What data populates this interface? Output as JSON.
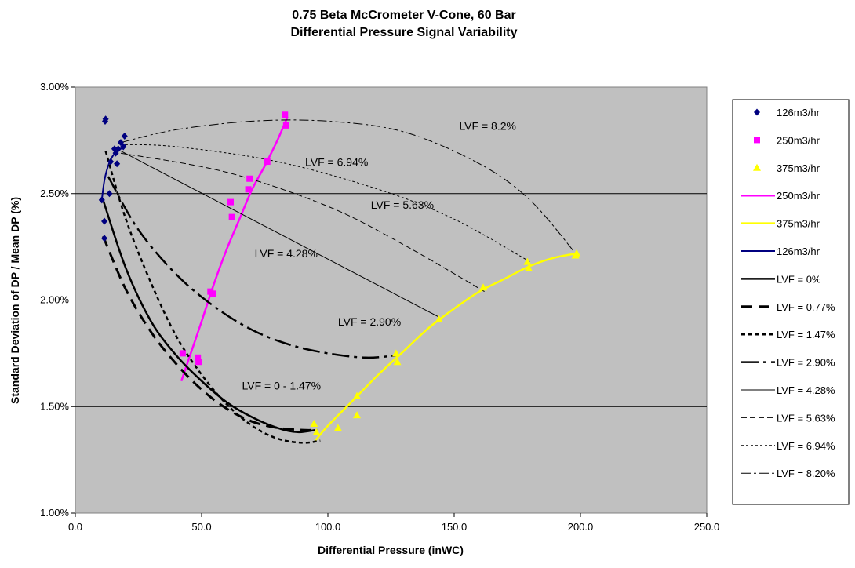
{
  "chart_data": {
    "type": "scatter",
    "title_line1": "0.75 Beta McCrometer V-Cone, 60 Bar",
    "title_line2": "Differential Pressure Signal Variability",
    "xlabel": "Differential Pressure (inWC)",
    "ylabel": "Standard Deviation of DP / Mean DP (%)",
    "xlim": [
      0,
      250
    ],
    "ylim": [
      1.0,
      3.0
    ],
    "x_ticks": [
      0,
      50,
      100,
      150,
      200,
      250
    ],
    "x_tick_labels": [
      "0.0",
      "50.0",
      "100.0",
      "150.0",
      "200.0",
      "250.0"
    ],
    "y_ticks": [
      1.0,
      1.5,
      2.0,
      2.5,
      3.0
    ],
    "y_tick_labels": [
      "1.00%",
      "1.50%",
      "2.00%",
      "2.50%",
      "3.00%"
    ],
    "grid": "horizontal",
    "plot_background": "#c0c0c0",
    "legend_position": "right",
    "markers": [
      {
        "name": "126m3/hr",
        "shape": "diamond",
        "color": "#000080",
        "points": [
          [
            10.5,
            2.47
          ],
          [
            11.5,
            2.29
          ],
          [
            11.5,
            2.37
          ],
          [
            11.8,
            2.84
          ],
          [
            12,
            2.85
          ],
          [
            13.5,
            2.5
          ],
          [
            14,
            2.65
          ],
          [
            15.5,
            2.71
          ],
          [
            16,
            2.69
          ],
          [
            16.5,
            2.64
          ],
          [
            17,
            2.71
          ],
          [
            18,
            2.74
          ],
          [
            19,
            2.72
          ],
          [
            19.5,
            2.77
          ]
        ]
      },
      {
        "name": "250m3/hr",
        "shape": "square",
        "color": "#ff00ff",
        "points": [
          [
            42.5,
            1.75
          ],
          [
            48.5,
            1.73
          ],
          [
            48.8,
            1.71
          ],
          [
            53.5,
            2.04
          ],
          [
            54.5,
            2.03
          ],
          [
            61.5,
            2.46
          ],
          [
            62,
            2.39
          ],
          [
            68.5,
            2.52
          ],
          [
            69,
            2.57
          ],
          [
            76,
            2.65
          ],
          [
            83,
            2.87
          ],
          [
            83.5,
            2.82
          ]
        ]
      },
      {
        "name": "375m3/hr",
        "shape": "triangle",
        "color": "#ffff00",
        "points": [
          [
            94.5,
            1.42
          ],
          [
            95.5,
            1.38
          ],
          [
            104,
            1.4
          ],
          [
            111.5,
            1.55
          ],
          [
            111.5,
            1.46
          ],
          [
            127,
            1.75
          ],
          [
            127.5,
            1.71
          ],
          [
            144,
            1.91
          ],
          [
            161.5,
            2.06
          ],
          [
            179,
            2.18
          ],
          [
            179.5,
            2.15
          ],
          [
            198,
            2.21
          ],
          [
            198.5,
            2.22
          ]
        ]
      }
    ],
    "curves": [
      {
        "name": "250m3/hr",
        "color": "#ff00ff",
        "width": 2.5,
        "dash": "",
        "points": [
          [
            42,
            1.62
          ],
          [
            46,
            1.76
          ],
          [
            50,
            1.9
          ],
          [
            55,
            2.08
          ],
          [
            60,
            2.24
          ],
          [
            65,
            2.38
          ],
          [
            70,
            2.52
          ],
          [
            75,
            2.63
          ],
          [
            80,
            2.75
          ],
          [
            84,
            2.86
          ]
        ]
      },
      {
        "name": "375m3/hr",
        "color": "#ffff00",
        "width": 2.5,
        "dash": "",
        "points": [
          [
            95,
            1.34
          ],
          [
            100,
            1.41
          ],
          [
            110,
            1.53
          ],
          [
            120,
            1.65
          ],
          [
            130,
            1.76
          ],
          [
            140,
            1.87
          ],
          [
            150,
            1.96
          ],
          [
            160,
            2.04
          ],
          [
            170,
            2.1
          ],
          [
            180,
            2.16
          ],
          [
            190,
            2.2
          ],
          [
            199,
            2.22
          ]
        ]
      },
      {
        "name": "126m3/hr",
        "color": "#000080",
        "width": 2,
        "dash": "",
        "points": [
          [
            10.5,
            2.47
          ],
          [
            11.5,
            2.56
          ],
          [
            13,
            2.63
          ],
          [
            15,
            2.68
          ],
          [
            17,
            2.7
          ],
          [
            19,
            2.72
          ],
          [
            20,
            2.73
          ]
        ]
      },
      {
        "name": "LVF = 0%",
        "color": "#000000",
        "width": 2.5,
        "dash": "",
        "points": [
          [
            11,
            2.47
          ],
          [
            20,
            2.15
          ],
          [
            30,
            1.9
          ],
          [
            40,
            1.74
          ],
          [
            50,
            1.62
          ],
          [
            60,
            1.52
          ],
          [
            70,
            1.45
          ],
          [
            80,
            1.4
          ],
          [
            88,
            1.38
          ],
          [
            95,
            1.39
          ]
        ]
      },
      {
        "name": "LVF = 0.77%",
        "color": "#000000",
        "width": 3,
        "dash": "14 8",
        "points": [
          [
            11,
            2.3
          ],
          [
            20,
            2.05
          ],
          [
            30,
            1.85
          ],
          [
            40,
            1.7
          ],
          [
            50,
            1.58
          ],
          [
            60,
            1.49
          ],
          [
            70,
            1.43
          ],
          [
            80,
            1.4
          ],
          [
            90,
            1.39
          ],
          [
            96,
            1.39
          ]
        ]
      },
      {
        "name": "LVF = 1.47%",
        "color": "#000000",
        "width": 2.5,
        "dash": "5 4",
        "points": [
          [
            12,
            2.7
          ],
          [
            20,
            2.38
          ],
          [
            30,
            2.08
          ],
          [
            40,
            1.83
          ],
          [
            50,
            1.65
          ],
          [
            60,
            1.51
          ],
          [
            70,
            1.41
          ],
          [
            80,
            1.35
          ],
          [
            90,
            1.33
          ],
          [
            97,
            1.34
          ]
        ]
      },
      {
        "name": "LVF = 2.90%",
        "color": "#000000",
        "width": 2.5,
        "dash": "22 6 4 6",
        "points": [
          [
            13,
            2.58
          ],
          [
            25,
            2.33
          ],
          [
            40,
            2.12
          ],
          [
            55,
            1.97
          ],
          [
            70,
            1.86
          ],
          [
            85,
            1.79
          ],
          [
            100,
            1.75
          ],
          [
            115,
            1.73
          ],
          [
            127,
            1.74
          ]
        ]
      },
      {
        "name": "LVF = 4.28%",
        "color": "#000000",
        "width": 1,
        "dash": "",
        "points": [
          [
            18,
            2.7
          ],
          [
            144,
            1.92
          ]
        ]
      },
      {
        "name": "LVF = 5.63%",
        "color": "#000000",
        "width": 1,
        "dash": "7 4",
        "points": [
          [
            18,
            2.69
          ],
          [
            60,
            2.6
          ],
          [
            100,
            2.44
          ],
          [
            130,
            2.26
          ],
          [
            162,
            2.04
          ]
        ]
      },
      {
        "name": "LVF = 6.94%",
        "color": "#000000",
        "width": 1,
        "dash": "3 3",
        "points": [
          [
            18,
            2.73
          ],
          [
            40,
            2.72
          ],
          [
            80,
            2.65
          ],
          [
            120,
            2.52
          ],
          [
            150,
            2.38
          ],
          [
            180,
            2.18
          ]
        ]
      },
      {
        "name": "LVF = 8.20%",
        "color": "#000000",
        "width": 1,
        "dash": "12 4 3 4",
        "points": [
          [
            18,
            2.74
          ],
          [
            40,
            2.8
          ],
          [
            70,
            2.84
          ],
          [
            100,
            2.84
          ],
          [
            130,
            2.79
          ],
          [
            160,
            2.64
          ],
          [
            180,
            2.47
          ],
          [
            198,
            2.22
          ]
        ]
      }
    ],
    "annotations": [
      {
        "text": "LVF = 8.2%",
        "x": 152,
        "y": 2.8
      },
      {
        "text": "LVF = 6.94%",
        "x": 91,
        "y": 2.63
      },
      {
        "text": "LVF = 5.63%",
        "x": 117,
        "y": 2.43
      },
      {
        "text": "LVF = 4.28%",
        "x": 71,
        "y": 2.2
      },
      {
        "text": "LVF = 2.90%",
        "x": 104,
        "y": 1.88
      },
      {
        "text": "LVF = 0 - 1.47%",
        "x": 66,
        "y": 1.58
      }
    ],
    "legend": [
      {
        "label": "126m3/hr",
        "kind": "marker",
        "shape": "diamond",
        "color": "#000080"
      },
      {
        "label": "250m3/hr",
        "kind": "marker",
        "shape": "square",
        "color": "#ff00ff"
      },
      {
        "label": "375m3/hr",
        "kind": "marker",
        "shape": "triangle",
        "color": "#ffff00"
      },
      {
        "label": "250m3/hr",
        "kind": "line",
        "color": "#ff00ff",
        "width": 2.5,
        "dash": ""
      },
      {
        "label": "375m3/hr",
        "kind": "line",
        "color": "#ffff00",
        "width": 2.5,
        "dash": ""
      },
      {
        "label": "126m3/hr",
        "kind": "line",
        "color": "#000080",
        "width": 2,
        "dash": ""
      },
      {
        "label": "LVF = 0%",
        "kind": "line",
        "color": "#000000",
        "width": 2.5,
        "dash": ""
      },
      {
        "label": "LVF = 0.77%",
        "kind": "line",
        "color": "#000000",
        "width": 3,
        "dash": "14 8"
      },
      {
        "label": "LVF = 1.47%",
        "kind": "line",
        "color": "#000000",
        "width": 2.5,
        "dash": "5 4"
      },
      {
        "label": "LVF = 2.90%",
        "kind": "line",
        "color": "#000000",
        "width": 2.5,
        "dash": "22 6 4 6"
      },
      {
        "label": "LVF = 4.28%",
        "kind": "line",
        "color": "#000000",
        "width": 1,
        "dash": ""
      },
      {
        "label": "LVF = 5.63%",
        "kind": "line",
        "color": "#000000",
        "width": 1,
        "dash": "7 4"
      },
      {
        "label": "LVF = 6.94%",
        "kind": "line",
        "color": "#000000",
        "width": 1,
        "dash": "3 3"
      },
      {
        "label": "LVF = 8.20%",
        "kind": "line",
        "color": "#000000",
        "width": 1,
        "dash": "12 4 3 4"
      }
    ]
  }
}
